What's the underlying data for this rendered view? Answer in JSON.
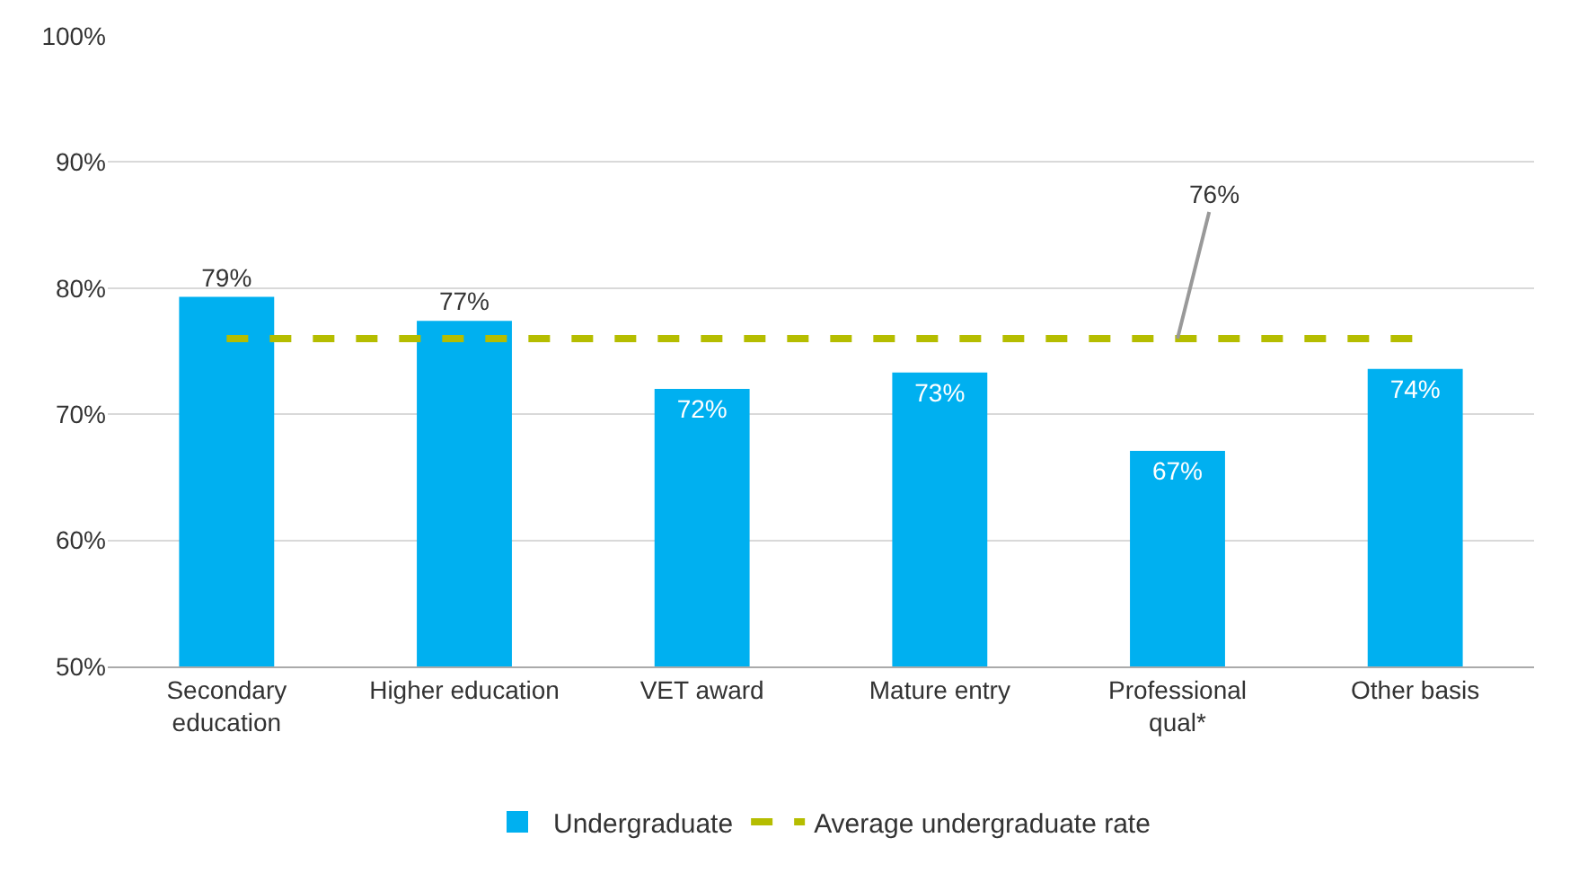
{
  "chart_data": {
    "type": "bar",
    "categories": [
      "Secondary education",
      "Higher education",
      "VET award",
      "Mature entry",
      "Professional qual*",
      "Other basis"
    ],
    "series": [
      {
        "name": "Undergraduate",
        "color": "#00b0f0",
        "values": [
          79.3,
          77.4,
          72.0,
          73.3,
          67.1,
          73.6
        ],
        "value_labels": [
          "79%",
          "77%",
          "72%",
          "73%",
          "67%",
          "74%"
        ]
      }
    ],
    "ylim": [
      50,
      100
    ],
    "yticks": [
      {
        "value": 50,
        "label": "50%"
      },
      {
        "value": 60,
        "label": "60%"
      },
      {
        "value": 70,
        "label": "70%"
      },
      {
        "value": 80,
        "label": "80%"
      },
      {
        "value": 90,
        "label": "90%"
      },
      {
        "value": 100,
        "label": "100%"
      }
    ],
    "grid": "y",
    "legend": "bottom",
    "ref_lines": [
      {
        "axis": "y",
        "value": 76,
        "label": "Average undergraduate rate",
        "color": "#b5bd00",
        "line_style": "dashed"
      }
    ],
    "annotations": [
      {
        "text": "76%",
        "x": "Professional qual*",
        "y": 76
      }
    ]
  }
}
